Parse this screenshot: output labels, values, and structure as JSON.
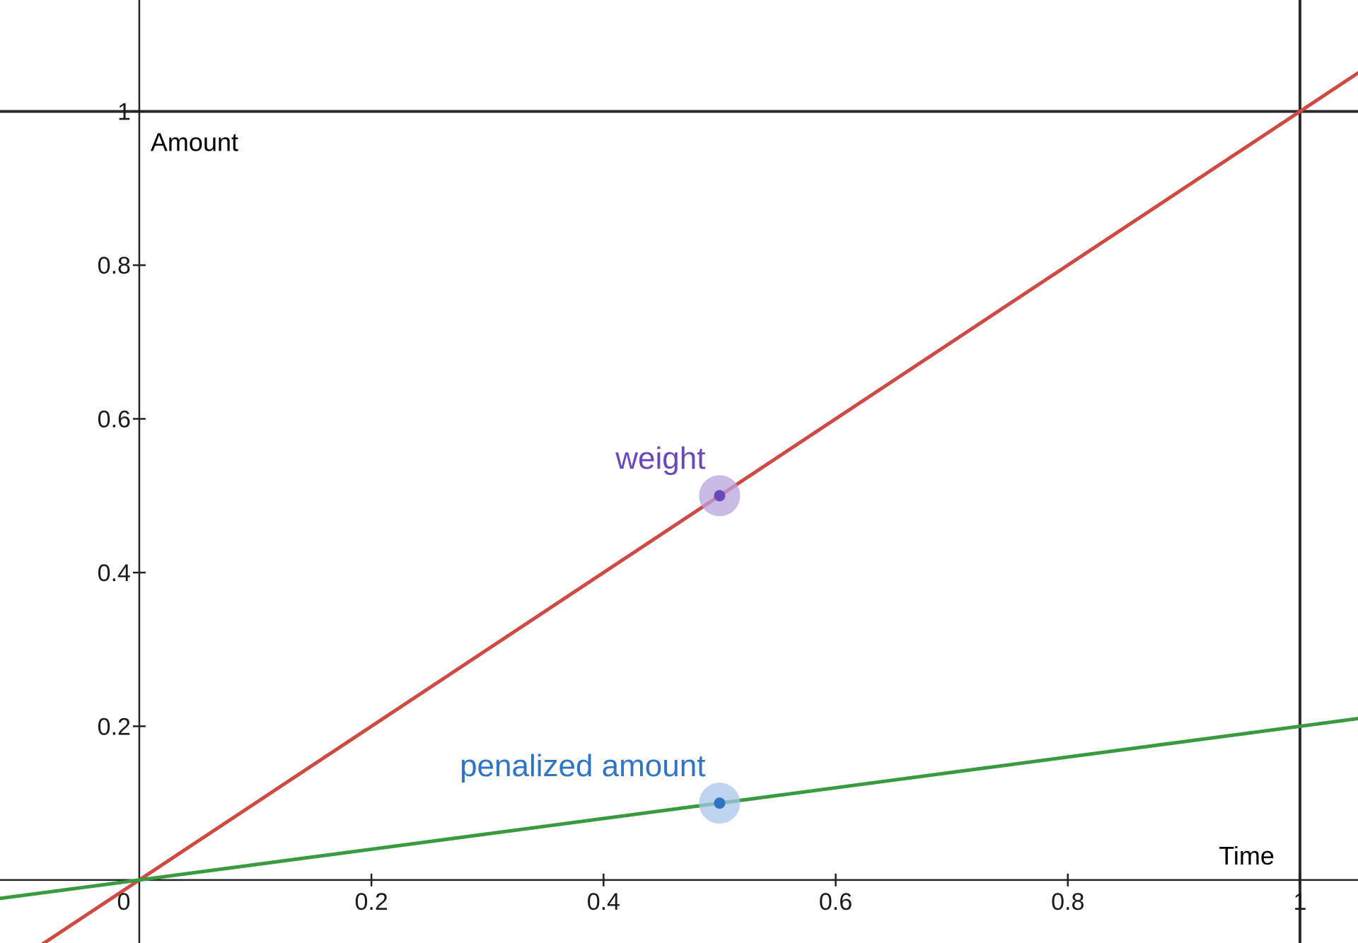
{
  "chart_data": {
    "type": "line",
    "xlabel": "Time",
    "ylabel": "Amount",
    "xlim": [
      -0.12,
      1.05
    ],
    "ylim": [
      -0.082,
      1.145
    ],
    "grid": false,
    "x_ticks": [
      {
        "value": 0,
        "label": "0"
      },
      {
        "value": 0.2,
        "label": "0.2"
      },
      {
        "value": 0.4,
        "label": "0.4"
      },
      {
        "value": 0.6,
        "label": "0.6"
      },
      {
        "value": 0.8,
        "label": "0.8"
      },
      {
        "value": 1,
        "label": "1"
      }
    ],
    "y_ticks": [
      {
        "value": 0.2,
        "label": "0.2"
      },
      {
        "value": 0.4,
        "label": "0.4"
      },
      {
        "value": 0.6,
        "label": "0.6"
      },
      {
        "value": 0.8,
        "label": "0.8"
      },
      {
        "value": 1,
        "label": "1"
      }
    ],
    "reference_lines": [
      {
        "orientation": "horizontal",
        "value": 1
      },
      {
        "orientation": "vertical",
        "value": 1
      }
    ],
    "series": [
      {
        "x": [
          -0.12,
          1.05
        ],
        "y": [
          -0.12,
          1.05
        ],
        "color": "#cf4a45"
      },
      {
        "x": [
          -0.12,
          1.05
        ],
        "y": [
          -0.024,
          0.21
        ],
        "color": "#3a9a3f"
      }
    ],
    "points": [
      {
        "label": "weight",
        "x": 0.5,
        "y": 0.5,
        "color": "#6a48b8",
        "halo": "#b7a4dc"
      },
      {
        "label": "penalized amount",
        "x": 0.5,
        "y": 0.1,
        "color": "#2f75c4",
        "halo": "#a9c6e8"
      }
    ]
  }
}
